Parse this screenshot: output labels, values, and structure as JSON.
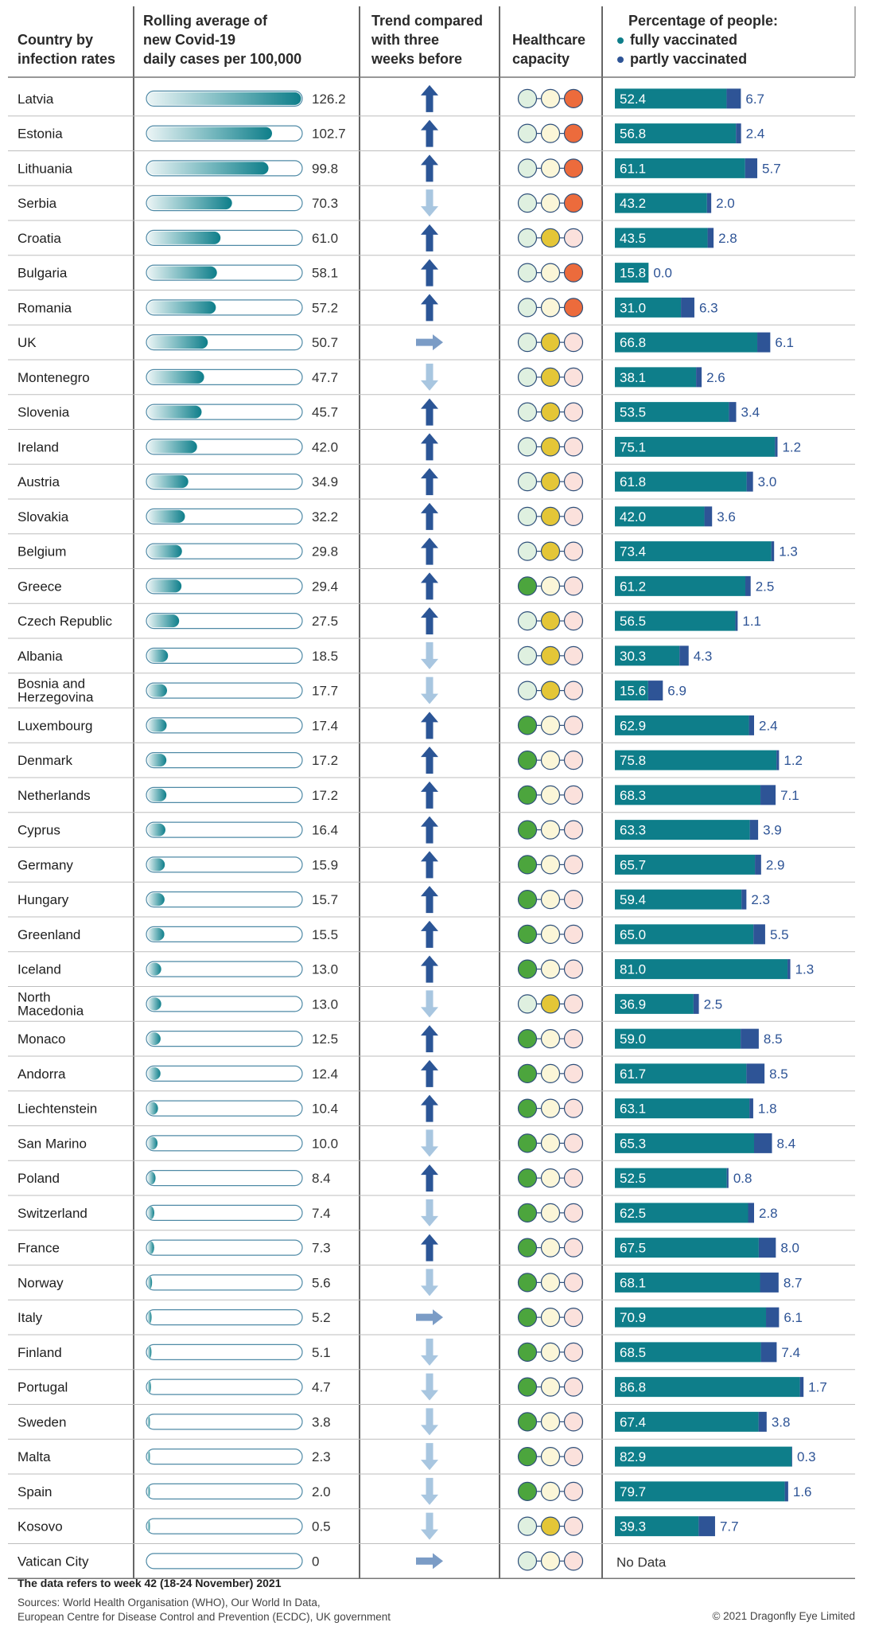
{
  "headers": {
    "country": [
      "Country by",
      "infection rates"
    ],
    "rolling": [
      "Rolling average of",
      "new Covid-19",
      "daily cases per 100,000"
    ],
    "trend": [
      "Trend compared",
      "with three",
      "weeks before"
    ],
    "healthcare": [
      "Healthcare",
      "capacity"
    ],
    "vacc_title": "Percentage of people:",
    "legend_fully": "fully vaccinated",
    "legend_partly": "partly vaccinated"
  },
  "colors": {
    "teal": "#0e7e8a",
    "navy": "#2e5496",
    "arrow_up": "#2b5596",
    "arrow_down": "#a8c6e0",
    "arrow_flat": "#7b9cc6",
    "green": "#4ca53d",
    "yellow": "#e4c637",
    "red": "#ec6b3c",
    "pale_green": "#dff0e0",
    "pale_yellow": "#fbf6d8",
    "pale_red": "#fbe1dc"
  },
  "no_data_label": "No Data",
  "footer": {
    "note": "The data refers to week 42 (18-24 November) 2021",
    "sources_1": "Sources: World Health Organisation (WHO), Our World In Data,",
    "sources_2": "European Centre for Disease Control and Prevention (ECDC), UK government",
    "copyright": "© 2021 Dragonfly Eye Limited"
  },
  "chart_data": {
    "type": "table",
    "cases_max": 126.2,
    "rows": [
      {
        "country": [
          "Latvia"
        ],
        "cases": 126.2,
        "cases_label": "126.2",
        "trend": "up",
        "capacity": "red",
        "fully": 52.4,
        "partly": 6.7
      },
      {
        "country": [
          "Estonia"
        ],
        "cases": 102.7,
        "cases_label": "102.7",
        "trend": "up",
        "capacity": "red",
        "fully": 56.8,
        "partly": 2.4
      },
      {
        "country": [
          "Lithuania"
        ],
        "cases": 99.8,
        "cases_label": "99.8",
        "trend": "up",
        "capacity": "red",
        "fully": 61.1,
        "partly": 5.7
      },
      {
        "country": [
          "Serbia"
        ],
        "cases": 70.3,
        "cases_label": "70.3",
        "trend": "down",
        "capacity": "red",
        "fully": 43.2,
        "partly": 2.0
      },
      {
        "country": [
          "Croatia"
        ],
        "cases": 61.0,
        "cases_label": "61.0",
        "trend": "up",
        "capacity": "yellow",
        "fully": 43.5,
        "partly": 2.8
      },
      {
        "country": [
          "Bulgaria"
        ],
        "cases": 58.1,
        "cases_label": "58.1",
        "trend": "up",
        "capacity": "red",
        "fully": 15.8,
        "partly": 0.0
      },
      {
        "country": [
          "Romania"
        ],
        "cases": 57.2,
        "cases_label": "57.2",
        "trend": "up",
        "capacity": "red",
        "fully": 31.0,
        "partly": 6.3
      },
      {
        "country": [
          "UK"
        ],
        "cases": 50.7,
        "cases_label": "50.7",
        "trend": "flat",
        "capacity": "yellow",
        "fully": 66.8,
        "partly": 6.1
      },
      {
        "country": [
          "Montenegro"
        ],
        "cases": 47.7,
        "cases_label": "47.7",
        "trend": "down",
        "capacity": "yellow",
        "fully": 38.1,
        "partly": 2.6
      },
      {
        "country": [
          "Slovenia"
        ],
        "cases": 45.7,
        "cases_label": "45.7",
        "trend": "up",
        "capacity": "yellow",
        "fully": 53.5,
        "partly": 3.4
      },
      {
        "country": [
          "Ireland"
        ],
        "cases": 42.0,
        "cases_label": "42.0",
        "trend": "up",
        "capacity": "yellow",
        "fully": 75.1,
        "partly": 1.2
      },
      {
        "country": [
          "Austria"
        ],
        "cases": 34.9,
        "cases_label": "34.9",
        "trend": "up",
        "capacity": "yellow",
        "fully": 61.8,
        "partly": 3.0
      },
      {
        "country": [
          "Slovakia"
        ],
        "cases": 32.2,
        "cases_label": "32.2",
        "trend": "up",
        "capacity": "yellow",
        "fully": 42.0,
        "partly": 3.6
      },
      {
        "country": [
          "Belgium"
        ],
        "cases": 29.8,
        "cases_label": "29.8",
        "trend": "up",
        "capacity": "yellow",
        "fully": 73.4,
        "partly": 1.3
      },
      {
        "country": [
          "Greece"
        ],
        "cases": 29.4,
        "cases_label": "29.4",
        "trend": "up",
        "capacity": "green",
        "fully": 61.2,
        "partly": 2.5
      },
      {
        "country": [
          "Czech Republic"
        ],
        "cases": 27.5,
        "cases_label": "27.5",
        "trend": "up",
        "capacity": "yellow",
        "fully": 56.5,
        "partly": 1.1
      },
      {
        "country": [
          "Albania"
        ],
        "cases": 18.5,
        "cases_label": "18.5",
        "trend": "down",
        "capacity": "yellow",
        "fully": 30.3,
        "partly": 4.3
      },
      {
        "country": [
          "Bosnia and",
          "Herzegovina"
        ],
        "cases": 17.7,
        "cases_label": "17.7",
        "trend": "down",
        "capacity": "yellow",
        "fully": 15.6,
        "partly": 6.9
      },
      {
        "country": [
          "Luxembourg"
        ],
        "cases": 17.4,
        "cases_label": "17.4",
        "trend": "up",
        "capacity": "green",
        "fully": 62.9,
        "partly": 2.4
      },
      {
        "country": [
          "Denmark"
        ],
        "cases": 17.2,
        "cases_label": "17.2",
        "trend": "up",
        "capacity": "green",
        "fully": 75.8,
        "partly": 1.2
      },
      {
        "country": [
          "Netherlands"
        ],
        "cases": 17.2,
        "cases_label": "17.2",
        "trend": "up",
        "capacity": "green",
        "fully": 68.3,
        "partly": 7.1
      },
      {
        "country": [
          "Cyprus"
        ],
        "cases": 16.4,
        "cases_label": "16.4",
        "trend": "up",
        "capacity": "green",
        "fully": 63.3,
        "partly": 3.9
      },
      {
        "country": [
          "Germany"
        ],
        "cases": 15.9,
        "cases_label": "15.9",
        "trend": "up",
        "capacity": "green",
        "fully": 65.7,
        "partly": 2.9
      },
      {
        "country": [
          "Hungary"
        ],
        "cases": 15.7,
        "cases_label": "15.7",
        "trend": "up",
        "capacity": "green",
        "fully": 59.4,
        "partly": 2.3
      },
      {
        "country": [
          "Greenland"
        ],
        "cases": 15.5,
        "cases_label": "15.5",
        "trend": "up",
        "capacity": "green",
        "fully": 65.0,
        "partly": 5.5
      },
      {
        "country": [
          "Iceland"
        ],
        "cases": 13.0,
        "cases_label": "13.0",
        "trend": "up",
        "capacity": "green",
        "fully": 81.0,
        "partly": 1.3
      },
      {
        "country": [
          "North",
          "Macedonia"
        ],
        "cases": 13.0,
        "cases_label": "13.0",
        "trend": "down",
        "capacity": "yellow",
        "fully": 36.9,
        "partly": 2.5
      },
      {
        "country": [
          "Monaco"
        ],
        "cases": 12.5,
        "cases_label": "12.5",
        "trend": "up",
        "capacity": "green",
        "fully": 59.0,
        "partly": 8.5
      },
      {
        "country": [
          "Andorra"
        ],
        "cases": 12.4,
        "cases_label": "12.4",
        "trend": "up",
        "capacity": "green",
        "fully": 61.7,
        "partly": 8.5
      },
      {
        "country": [
          "Liechtenstein"
        ],
        "cases": 10.4,
        "cases_label": "10.4",
        "trend": "up",
        "capacity": "green",
        "fully": 63.1,
        "partly": 1.8
      },
      {
        "country": [
          "San Marino"
        ],
        "cases": 10.0,
        "cases_label": "10.0",
        "trend": "down",
        "capacity": "green",
        "fully": 65.3,
        "partly": 8.4
      },
      {
        "country": [
          "Poland"
        ],
        "cases": 8.4,
        "cases_label": "8.4",
        "trend": "up",
        "capacity": "green",
        "fully": 52.5,
        "partly": 0.8
      },
      {
        "country": [
          "Switzerland"
        ],
        "cases": 7.4,
        "cases_label": "7.4",
        "trend": "down",
        "capacity": "green",
        "fully": 62.5,
        "partly": 2.8
      },
      {
        "country": [
          "France"
        ],
        "cases": 7.3,
        "cases_label": "7.3",
        "trend": "up",
        "capacity": "green",
        "fully": 67.5,
        "partly": 8.0
      },
      {
        "country": [
          "Norway"
        ],
        "cases": 5.6,
        "cases_label": "5.6",
        "trend": "down",
        "capacity": "green",
        "fully": 68.1,
        "partly": 8.7
      },
      {
        "country": [
          "Italy"
        ],
        "cases": 5.2,
        "cases_label": "5.2",
        "trend": "flat",
        "capacity": "green",
        "fully": 70.9,
        "partly": 6.1
      },
      {
        "country": [
          "Finland"
        ],
        "cases": 5.1,
        "cases_label": "5.1",
        "trend": "down",
        "capacity": "green",
        "fully": 68.5,
        "partly": 7.4
      },
      {
        "country": [
          "Portugal"
        ],
        "cases": 4.7,
        "cases_label": "4.7",
        "trend": "down",
        "capacity": "green",
        "fully": 86.8,
        "partly": 1.7
      },
      {
        "country": [
          "Sweden"
        ],
        "cases": 3.8,
        "cases_label": "3.8",
        "trend": "down",
        "capacity": "green",
        "fully": 67.4,
        "partly": 3.8
      },
      {
        "country": [
          "Malta"
        ],
        "cases": 2.3,
        "cases_label": "2.3",
        "trend": "down",
        "capacity": "green",
        "fully": 82.9,
        "partly": 0.3
      },
      {
        "country": [
          "Spain"
        ],
        "cases": 2.0,
        "cases_label": "2.0",
        "trend": "down",
        "capacity": "green",
        "fully": 79.7,
        "partly": 1.6
      },
      {
        "country": [
          "Kosovo"
        ],
        "cases": 0.5,
        "cases_label": "0.5",
        "trend": "down",
        "capacity": "yellow",
        "fully": 39.3,
        "partly": 7.7
      },
      {
        "country": [
          "Vatican City"
        ],
        "cases": 0,
        "cases_label": "0",
        "trend": "flat",
        "capacity": "none",
        "fully": null,
        "partly": null
      }
    ]
  }
}
